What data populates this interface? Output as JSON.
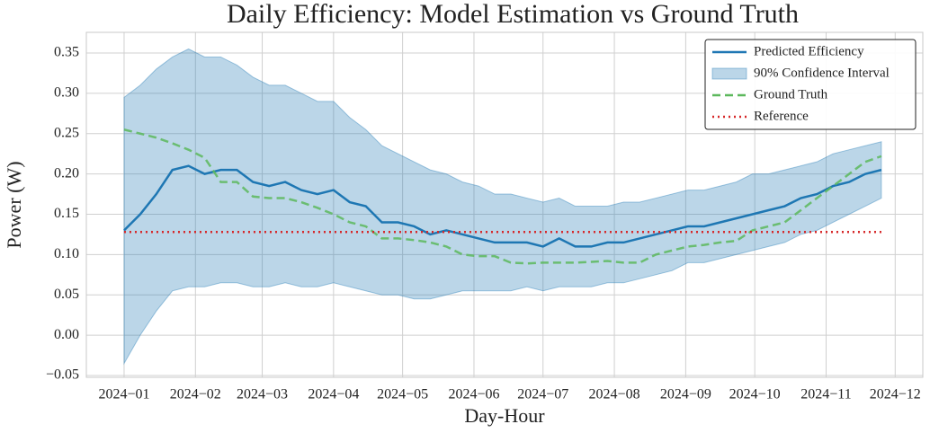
{
  "chart_data": {
    "type": "line",
    "title": "Daily Efficiency: Model Estimation vs Ground Truth",
    "xlabel": "Day-Hour",
    "ylabel": "Power (W)",
    "x": [
      0,
      7,
      14,
      21,
      28,
      35,
      42,
      49,
      56,
      63,
      70,
      77,
      84,
      91,
      98,
      105,
      112,
      119,
      126,
      133,
      140,
      147,
      154,
      161,
      168,
      175,
      182,
      189,
      196,
      203,
      210,
      217,
      224,
      231,
      238,
      245,
      252,
      259,
      266,
      273,
      280,
      287,
      294,
      301,
      308,
      315,
      322,
      329
    ],
    "series": [
      {
        "name": "Predicted Efficiency",
        "color": "#1f77b4",
        "style": "solid",
        "values": [
          0.13,
          0.15,
          0.175,
          0.205,
          0.21,
          0.2,
          0.205,
          0.205,
          0.19,
          0.185,
          0.19,
          0.18,
          0.175,
          0.18,
          0.165,
          0.16,
          0.14,
          0.14,
          0.135,
          0.125,
          0.13,
          0.125,
          0.12,
          0.115,
          0.115,
          0.115,
          0.11,
          0.12,
          0.11,
          0.11,
          0.115,
          0.115,
          0.12,
          0.125,
          0.13,
          0.135,
          0.135,
          0.14,
          0.145,
          0.15,
          0.155,
          0.16,
          0.17,
          0.175,
          0.185,
          0.19,
          0.2,
          0.205
        ]
      },
      {
        "name": "90% Confidence Interval",
        "color": "#1f77b4",
        "style": "band",
        "upper": [
          0.295,
          0.31,
          0.33,
          0.345,
          0.355,
          0.345,
          0.345,
          0.335,
          0.32,
          0.31,
          0.31,
          0.3,
          0.29,
          0.29,
          0.27,
          0.255,
          0.235,
          0.225,
          0.215,
          0.205,
          0.2,
          0.19,
          0.185,
          0.175,
          0.175,
          0.17,
          0.165,
          0.17,
          0.16,
          0.16,
          0.16,
          0.165,
          0.165,
          0.17,
          0.175,
          0.18,
          0.18,
          0.185,
          0.19,
          0.2,
          0.2,
          0.205,
          0.21,
          0.215,
          0.225,
          0.23,
          0.235,
          0.24
        ],
        "lower": [
          -0.035,
          0.0,
          0.03,
          0.055,
          0.06,
          0.06,
          0.065,
          0.065,
          0.06,
          0.06,
          0.065,
          0.06,
          0.06,
          0.065,
          0.06,
          0.055,
          0.05,
          0.05,
          0.045,
          0.045,
          0.05,
          0.055,
          0.055,
          0.055,
          0.055,
          0.06,
          0.055,
          0.06,
          0.06,
          0.06,
          0.065,
          0.065,
          0.07,
          0.075,
          0.08,
          0.09,
          0.09,
          0.095,
          0.1,
          0.105,
          0.11,
          0.115,
          0.125,
          0.13,
          0.14,
          0.15,
          0.16,
          0.17
        ]
      },
      {
        "name": "Ground Truth",
        "color": "#5cb85c",
        "style": "dashed",
        "values": [
          0.255,
          0.25,
          0.245,
          0.238,
          0.23,
          0.22,
          0.19,
          0.19,
          0.172,
          0.17,
          0.17,
          0.165,
          0.158,
          0.15,
          0.14,
          0.135,
          0.12,
          0.12,
          0.118,
          0.115,
          0.11,
          0.1,
          0.098,
          0.098,
          0.09,
          0.089,
          0.09,
          0.09,
          0.09,
          0.091,
          0.092,
          0.09,
          0.09,
          0.1,
          0.105,
          0.11,
          0.112,
          0.115,
          0.117,
          0.13,
          0.135,
          0.14,
          0.155,
          0.17,
          0.185,
          0.2,
          0.215,
          0.222
        ]
      },
      {
        "name": "Reference",
        "color": "#d62728",
        "style": "dotted",
        "values": [
          0.128,
          0.128,
          0.128,
          0.128,
          0.128,
          0.128,
          0.128,
          0.128,
          0.128,
          0.128,
          0.128,
          0.128,
          0.128,
          0.128,
          0.128,
          0.128,
          0.128,
          0.128,
          0.128,
          0.128,
          0.128,
          0.128,
          0.128,
          0.128,
          0.128,
          0.128,
          0.128,
          0.128,
          0.128,
          0.128,
          0.128,
          0.128,
          0.128,
          0.128,
          0.128,
          0.128,
          0.128,
          0.128,
          0.128,
          0.128,
          0.128,
          0.128,
          0.128,
          0.128,
          0.128,
          0.128,
          0.128,
          0.128
        ]
      }
    ],
    "xlim": [
      -16.4,
      347
    ],
    "xticks": [
      {
        "value": 0,
        "label": "2024−01"
      },
      {
        "value": 31,
        "label": "2024−02"
      },
      {
        "value": 60,
        "label": "2024−03"
      },
      {
        "value": 91,
        "label": "2024−04"
      },
      {
        "value": 121,
        "label": "2024−05"
      },
      {
        "value": 152,
        "label": "2024−06"
      },
      {
        "value": 182,
        "label": "2024−07"
      },
      {
        "value": 213,
        "label": "2024−08"
      },
      {
        "value": 244,
        "label": "2024−09"
      },
      {
        "value": 274,
        "label": "2024−10"
      },
      {
        "value": 305,
        "label": "2024−11"
      },
      {
        "value": 335,
        "label": "2024−12"
      }
    ],
    "ylim": [
      -0.0522,
      0.3756
    ],
    "yticks": [
      {
        "value": -0.05,
        "label": "−0.05"
      },
      {
        "value": 0,
        "label": "0.00"
      },
      {
        "value": 0.05,
        "label": "0.05"
      },
      {
        "value": 0.1,
        "label": "0.10"
      },
      {
        "value": 0.15,
        "label": "0.15"
      },
      {
        "value": 0.2,
        "label": "0.20"
      },
      {
        "value": 0.25,
        "label": "0.25"
      },
      {
        "value": 0.3,
        "label": "0.30"
      },
      {
        "value": 0.35,
        "label": "0.35"
      }
    ],
    "grid": true,
    "legend": "upper right"
  }
}
